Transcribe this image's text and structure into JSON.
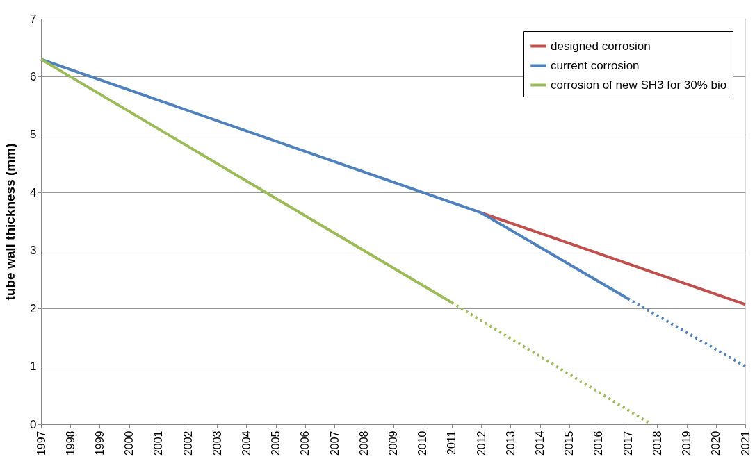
{
  "chart_data": {
    "type": "line",
    "ylabel": "tube wall thickness (mm)",
    "xlim": [
      1997,
      2021
    ],
    "xticks": [
      1997,
      1998,
      1999,
      2000,
      2001,
      2002,
      2003,
      2004,
      2005,
      2006,
      2007,
      2008,
      2009,
      2010,
      2011,
      2012,
      2013,
      2014,
      2015,
      2016,
      2017,
      2018,
      2019,
      2020,
      2021
    ],
    "ylim": [
      0,
      7
    ],
    "yticks": [
      0,
      1,
      2,
      3,
      4,
      5,
      6,
      7
    ],
    "grid": "y",
    "legend": "top right",
    "marker": "none",
    "series": [
      {
        "name": "designed corrosion",
        "color": "#c0504d",
        "x": [
          2012,
          2021
        ],
        "values": [
          3.65,
          2.07
        ],
        "line_style": "solid"
      },
      {
        "name": "current corrosion",
        "color": "#4f81bd",
        "x": [
          1997,
          2012,
          2017
        ],
        "values": [
          6.3,
          3.65,
          2.17
        ],
        "line_style": "solid"
      },
      {
        "name": "corrosion of new SH3 for 30% bio",
        "color": "#9bbb59",
        "x": [
          1997,
          2011
        ],
        "values": [
          6.3,
          2.1
        ],
        "line_style": "solid"
      },
      {
        "color": "#4f81bd",
        "x": [
          2017,
          2021
        ],
        "values": [
          2.17,
          1.0
        ],
        "line_style": "dotted"
      },
      {
        "color": "#9bbb59",
        "x": [
          2011,
          2017.8
        ],
        "values": [
          2.1,
          0.0
        ],
        "line_style": "dotted"
      }
    ]
  }
}
